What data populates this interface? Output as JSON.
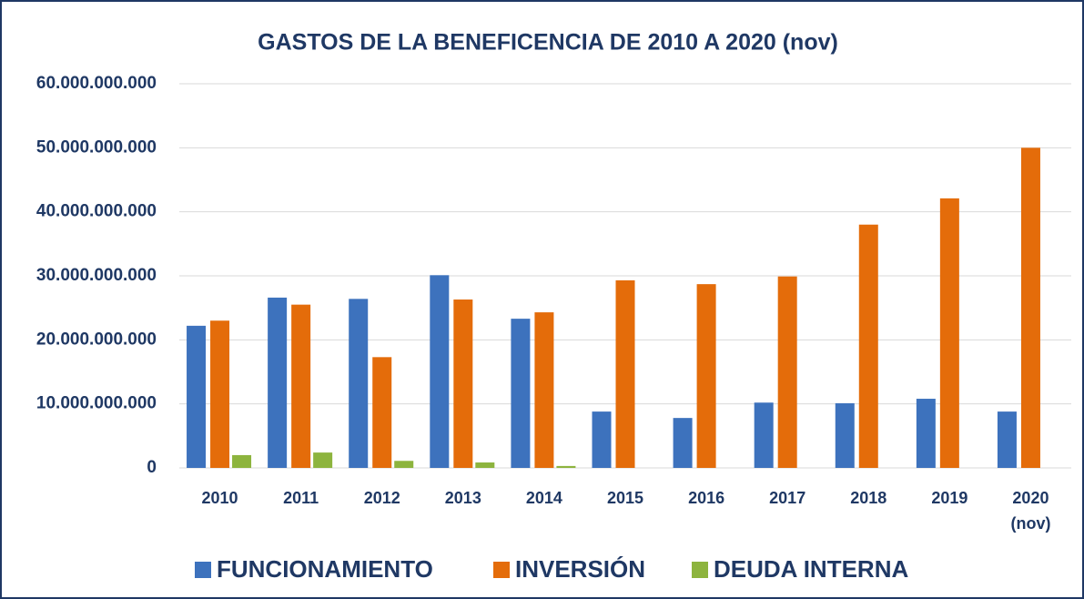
{
  "chart_data": {
    "type": "bar",
    "title": "GASTOS DE LA BENEFICENCIA DE 2010 A 2020 (nov)",
    "categories": [
      "2010",
      "2011",
      "2012",
      "2013",
      "2014",
      "2015",
      "2016",
      "2017",
      "2018",
      "2019",
      "2020 (nov)"
    ],
    "series": [
      {
        "name": "FUNCIONAMIENTO",
        "color": "#3d72bd",
        "values": [
          22200000000,
          26600000000,
          26400000000,
          30100000000,
          23300000000,
          8800000000,
          7800000000,
          10200000000,
          10100000000,
          10800000000,
          8800000000
        ]
      },
      {
        "name": "INVERSIÓN",
        "color": "#e46c0a",
        "values": [
          23000000000,
          25500000000,
          17300000000,
          26300000000,
          24300000000,
          29300000000,
          28700000000,
          29900000000,
          38000000000,
          42100000000,
          50000000000
        ]
      },
      {
        "name": "DEUDA INTERNA",
        "color": "#8db43e",
        "values": [
          2000000000,
          2400000000,
          1100000000,
          850000000,
          300000000,
          0,
          0,
          0,
          0,
          0,
          0
        ]
      }
    ],
    "ylim": [
      0,
      60000000000
    ],
    "yticks": [
      0,
      {
        "value": 10000000000,
        "label": "10.000.000.000"
      },
      {
        "value": 20000000000,
        "label": "20.000.000.000"
      },
      {
        "value": 30000000000,
        "label": "30.000.000.000"
      },
      {
        "value": 40000000000,
        "label": "40.000.000.000"
      },
      {
        "value": 50000000000,
        "label": "50.000.000.000"
      },
      {
        "value": 60000000000,
        "label": "60.000.000.000"
      }
    ],
    "grid": true,
    "legend": "bottom"
  }
}
